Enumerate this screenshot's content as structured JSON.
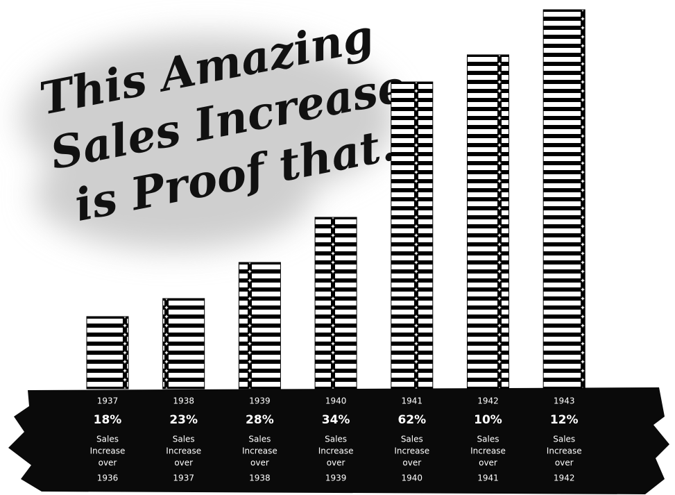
{
  "chart_data": {
    "type": "bar",
    "title": [
      "This Amazing",
      "Sales Increase",
      "is Proof that.."
    ],
    "categories": [
      "1937",
      "1938",
      "1939",
      "1940",
      "1941",
      "1942",
      "1943"
    ],
    "values": [
      8,
      10,
      14,
      19,
      34,
      37,
      42
    ],
    "color": "#000000",
    "increase": {
      "values": [
        18,
        23,
        28,
        34,
        62,
        10,
        12
      ],
      "value_labels": [
        "18%",
        "23%",
        "28%",
        "34%",
        "62%",
        "10%",
        "12%"
      ]
    },
    "captions": [
      [
        "Sales",
        "Increase",
        "over",
        "1936"
      ],
      [
        "Sales",
        "Increase",
        "over",
        "1937"
      ],
      [
        "Sales",
        "Increase",
        "over",
        "1938"
      ],
      [
        "Sales",
        "Increase",
        "over",
        "1939"
      ],
      [
        "Sales",
        "Increase",
        "over",
        "1940"
      ],
      [
        "Sales",
        "Increase",
        "over",
        "1941"
      ],
      [
        "Sales",
        "Increase",
        "over",
        "1942"
      ]
    ]
  }
}
